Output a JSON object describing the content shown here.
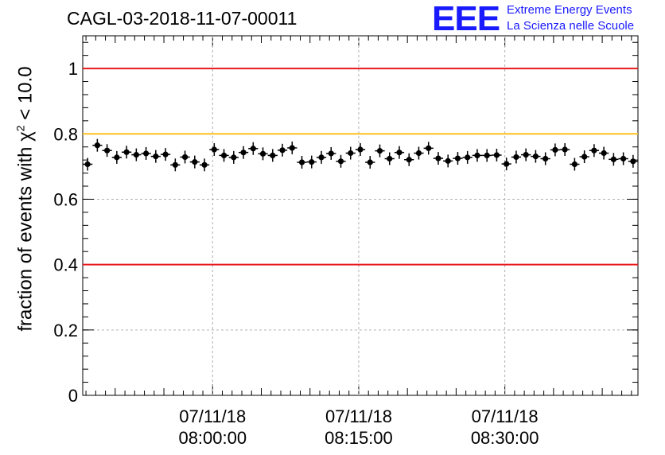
{
  "chart_data": {
    "type": "scatter",
    "title": "CAGL-03-2018-11-07-00011",
    "ylabel": "fraction of events with",
    "ylabel_chi": "χ",
    "ylabel_power": "2",
    "ylabel_rest": " < 10.0",
    "ylim": [
      0,
      1.1
    ],
    "yticks": [
      "0",
      "0.2",
      "0.4",
      "0.6",
      "0.8",
      "1"
    ],
    "xticks": [
      {
        "date": "07/11/18",
        "time": "08:00:00"
      },
      {
        "date": "07/11/18",
        "time": "08:15:00"
      },
      {
        "date": "07/11/18",
        "time": "08:30:00"
      }
    ],
    "xlim": [
      "07:46:40",
      "08:43:40"
    ],
    "x_step_minutes": 1,
    "x_start": "07:47:10",
    "grid": true,
    "reference_lines": [
      {
        "y": 1.0,
        "color": "#e8191c"
      },
      {
        "y": 0.8,
        "color": "#ffc020"
      },
      {
        "y": 0.4,
        "color": "#e8191c"
      }
    ],
    "values": [
      0.707,
      0.765,
      0.749,
      0.728,
      0.744,
      0.736,
      0.74,
      0.731,
      0.737,
      0.705,
      0.729,
      0.714,
      0.705,
      0.752,
      0.734,
      0.728,
      0.743,
      0.755,
      0.739,
      0.734,
      0.75,
      0.757,
      0.713,
      0.714,
      0.728,
      0.74,
      0.716,
      0.741,
      0.752,
      0.713,
      0.748,
      0.724,
      0.743,
      0.721,
      0.741,
      0.756,
      0.725,
      0.717,
      0.725,
      0.728,
      0.734,
      0.734,
      0.735,
      0.708,
      0.729,
      0.736,
      0.731,
      0.724,
      0.751,
      0.752,
      0.707,
      0.73,
      0.749,
      0.741,
      0.722,
      0.724,
      0.716
    ]
  },
  "logo": {
    "mark": "EEE",
    "line1": "Extreme Energy Events",
    "line2": "La Scienza nelle Scuole"
  },
  "colors": {
    "points": "#000000",
    "grid": "#b0b0b0",
    "logo": "#1a1aff"
  }
}
